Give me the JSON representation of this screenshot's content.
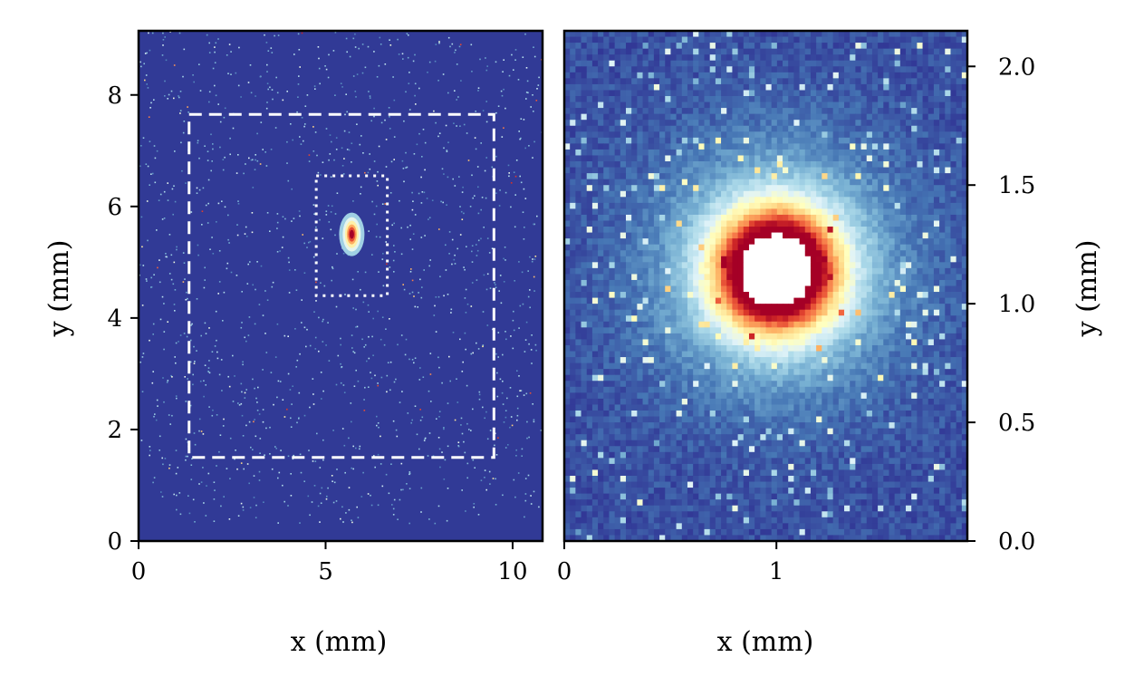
{
  "chart_data": [
    {
      "type": "heatmap",
      "panel": "left",
      "xlabel": "x (mm)",
      "ylabel": "y (mm)",
      "xlim": [
        0,
        10.8
      ],
      "ylim": [
        0,
        9.15
      ],
      "xticks": [
        0,
        5,
        10
      ],
      "xtick_labels": [
        "0",
        "5",
        "10"
      ],
      "yticks": [
        0,
        2,
        4,
        6,
        8
      ],
      "ytick_labels": [
        "0",
        "2",
        "4",
        "6",
        "8"
      ],
      "y_axis_side": "left",
      "colormap": [
        "#313695",
        "#4575b4",
        "#74add1",
        "#abd9e9",
        "#e0f3f8",
        "#ffffbf",
        "#fee090",
        "#fdae61",
        "#f46d43",
        "#d73027",
        "#a50026"
      ],
      "background_color": "#313a96",
      "spot_center": [
        5.7,
        5.5
      ],
      "regions": [
        {
          "style": "dashed",
          "x": [
            1.35,
            9.5
          ],
          "y": [
            1.5,
            7.65
          ],
          "color": "#ffffff"
        },
        {
          "style": "dotted",
          "x": [
            4.75,
            6.65
          ],
          "y": [
            4.4,
            6.55
          ],
          "color": "#ffffff"
        }
      ]
    },
    {
      "type": "heatmap",
      "panel": "right",
      "xlabel": "x (mm)",
      "ylabel": "y (mm)",
      "xlim": [
        0,
        1.9
      ],
      "ylim": [
        0,
        2.15
      ],
      "xticks": [
        0,
        1
      ],
      "xtick_labels": [
        "0",
        "1"
      ],
      "yticks": [
        0.0,
        0.5,
        1.0,
        1.5,
        2.0
      ],
      "ytick_labels": [
        "0.0",
        "0.5",
        "1.0",
        "1.5",
        "2.0"
      ],
      "y_axis_side": "right",
      "colormap": [
        "#313695",
        "#4575b4",
        "#74add1",
        "#abd9e9",
        "#e0f3f8",
        "#ffffbf",
        "#fee090",
        "#fdae61",
        "#f46d43",
        "#d73027",
        "#a50026"
      ],
      "saturated_color": "#ffffff",
      "background_color": "#313a96",
      "spot_center": [
        1.0,
        1.14
      ]
    }
  ]
}
